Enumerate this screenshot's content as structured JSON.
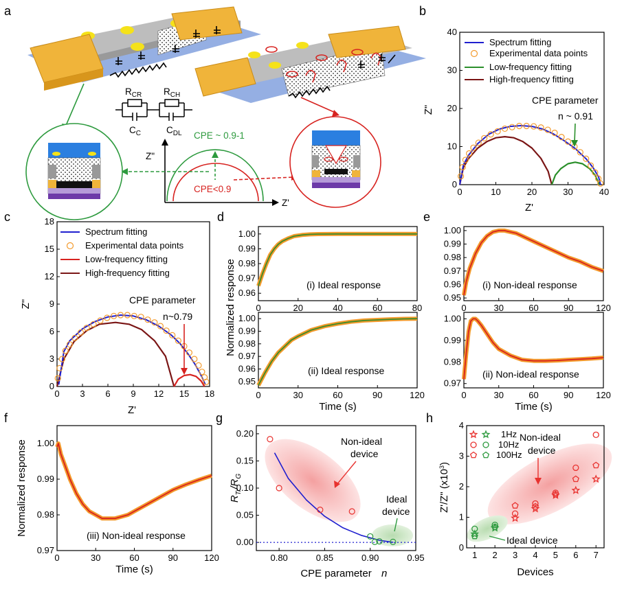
{
  "colors": {
    "fit_blue": "#1f1fcf",
    "exp_orange": "#f39a2c",
    "low_green": "#2a8f2a",
    "high_dark": "#7a1515",
    "red_curve": "#d7221f",
    "green_resp": "#3b8b2a",
    "gold": "#f2b33a",
    "ideal_green": "#2d9a3e",
    "nonideal_red": "#e8322f"
  },
  "panel_labels": {
    "a": "a",
    "b": "b",
    "c": "c",
    "d": "d",
    "e": "e",
    "f": "f",
    "g": "g",
    "h": "h"
  },
  "panel_a": {
    "rcr": "R",
    "rcr_sub": "CR",
    "rch": "R",
    "rch_sub": "CH",
    "cc": "C",
    "cc_sub": "C",
    "cdl": "C",
    "cdl_sub": "DL",
    "zpp": "Z\"",
    "zp": "Z'",
    "cpe_ideal": "CPE ~ 0.9-1",
    "cpe_nonideal": "CPE<0.9"
  },
  "legend": {
    "spectrum": "Spectrum fitting",
    "experimental": "Experimental data points",
    "low": "Low-frequency fitting",
    "high": "High-frequency fitting"
  },
  "chart_data": [
    {
      "panel": "b",
      "type": "scatter",
      "xlabel": "Z'",
      "ylabel": "Z\"",
      "xlim": [
        0,
        40
      ],
      "ylim": [
        0,
        40
      ],
      "xticks": [
        "0",
        "10",
        "20",
        "30",
        "40"
      ],
      "yticks": [
        "0",
        "10",
        "20",
        "30",
        "40"
      ],
      "annotation_title": "CPE parameter",
      "annotation_value": "n ~ 0.91",
      "series": [
        {
          "name": "Spectrum fitting",
          "kind": "line",
          "x": [
            0,
            1,
            2.5,
            5,
            8,
            11,
            14,
            17,
            20,
            23,
            26,
            29,
            32,
            35,
            37,
            38.5,
            39
          ],
          "y": [
            0,
            5.2,
            7.8,
            10.8,
            13.2,
            14.6,
            15.3,
            15.5,
            15.3,
            14.6,
            13.3,
            11.5,
            9.5,
            6.8,
            4.4,
            2,
            0
          ]
        },
        {
          "name": "Experimental data points",
          "kind": "marker",
          "x": [
            0.3,
            0.8,
            1.6,
            2.6,
            3.8,
            5.2,
            6.8,
            8.6,
            10.5,
            12.5,
            14.5,
            16.5,
            18.5,
            20.5,
            22.5,
            24.4,
            26.3,
            28.2,
            30,
            31.8,
            33.4,
            35,
            36.3,
            37.5,
            38.4,
            39
          ],
          "y": [
            2.2,
            4.6,
            6.5,
            8.2,
            9.7,
            11,
            12.2,
            13.2,
            14,
            14.7,
            15.1,
            15.4,
            15.4,
            15.3,
            15,
            14.4,
            13.6,
            12.5,
            11.3,
            10,
            8.5,
            6.8,
            5,
            3.2,
            1.6,
            0.3
          ]
        },
        {
          "name": "High-frequency fitting",
          "kind": "line",
          "x": [
            0,
            1,
            2.5,
            5,
            7.5,
            10,
            12.5,
            15,
            17.5,
            20,
            22.5,
            24.5,
            25.5
          ],
          "y": [
            0,
            4.5,
            6.9,
            9.6,
            11.3,
            12.3,
            12.6,
            12.3,
            11.3,
            9.6,
            6.9,
            3.5,
            0
          ]
        },
        {
          "name": "Low-frequency fitting",
          "kind": "line",
          "x": [
            25.5,
            26.5,
            28,
            30,
            32,
            34,
            36,
            37.5,
            38.7
          ],
          "y": [
            0,
            2.5,
            4.2,
            5.5,
            5.9,
            5.5,
            4.2,
            2.5,
            0
          ]
        }
      ]
    },
    {
      "panel": "c",
      "type": "scatter",
      "xlabel": "Z'",
      "ylabel": "Z\"",
      "xlim": [
        0,
        18
      ],
      "ylim": [
        0,
        18
      ],
      "xticks": [
        "0",
        "3",
        "6",
        "9",
        "12",
        "15",
        "18"
      ],
      "yticks": [
        "0",
        "3",
        "6",
        "9",
        "12",
        "15",
        "18"
      ],
      "annotation_title": "CPE parameter",
      "annotation_value": "n~0.79",
      "series": [
        {
          "name": "Spectrum fitting",
          "kind": "line",
          "x": [
            0.2,
            0.8,
            1.5,
            3,
            4.5,
            6,
            7.5,
            9,
            10.5,
            12,
            13.5,
            14.5,
            15.5,
            16.3,
            17,
            17.5
          ],
          "y": [
            0.2,
            3.8,
            5,
            6.3,
            7.1,
            7.6,
            7.8,
            7.7,
            7.3,
            6.6,
            5.6,
            4.7,
            3.5,
            2.4,
            1.2,
            0.2
          ]
        },
        {
          "name": "Experimental data points",
          "kind": "marker",
          "x": [
            0.1,
            0.3,
            0.6,
            1,
            1.5,
            2.1,
            2.8,
            3.5,
            4.3,
            5.1,
            5.9,
            6.7,
            7.5,
            8.3,
            9.1,
            9.9,
            10.7,
            11.5,
            12.2,
            12.9,
            13.6,
            14.3,
            15,
            15.6,
            16.2,
            16.7,
            17.1,
            17.4,
            17.6
          ],
          "y": [
            0.9,
            2,
            3,
            3.9,
            4.6,
            5.3,
            5.9,
            6.4,
            6.8,
            7.2,
            7.5,
            7.7,
            7.8,
            7.8,
            7.7,
            7.6,
            7.3,
            7,
            6.6,
            6.1,
            5.6,
            5,
            4.4,
            3.7,
            3,
            2.3,
            1.6,
            1,
            0.5
          ]
        },
        {
          "name": "High-frequency fitting",
          "kind": "line",
          "x": [
            0,
            0.8,
            2,
            3.5,
            5,
            6.9,
            8.5,
            10,
            11.5,
            12.8,
            13.8
          ],
          "y": [
            0,
            3,
            4.9,
            6.1,
            6.8,
            7,
            6.8,
            6.2,
            5,
            3.3,
            0
          ]
        },
        {
          "name": "Low-frequency fitting",
          "kind": "line",
          "x": [
            13.8,
            14.3,
            15,
            15.7,
            16.4,
            17,
            17.4
          ],
          "y": [
            0,
            0.8,
            1.2,
            1.3,
            1.1,
            0.6,
            0
          ]
        }
      ]
    },
    {
      "panel": "d-i",
      "type": "line",
      "annotation": "(i) Ideal response",
      "xlim": [
        0,
        80
      ],
      "ylim": [
        0.955,
        1.005
      ],
      "xticks": [
        "0",
        "20",
        "40",
        "60",
        "80"
      ],
      "yticks": [
        "0.96",
        "0.97",
        "0.98",
        "0.99",
        "1.00"
      ],
      "series": [
        {
          "kind": "line",
          "x": [
            0,
            2,
            4,
            6,
            8,
            10,
            12,
            15,
            18,
            22,
            26,
            30,
            40,
            60,
            80
          ],
          "y": [
            0.965,
            0.973,
            0.98,
            0.986,
            0.99,
            0.993,
            0.995,
            0.997,
            0.9985,
            0.9993,
            0.9997,
            0.9999,
            1.0,
            1.0,
            1.0
          ]
        }
      ]
    },
    {
      "panel": "d-ii",
      "type": "line",
      "annotation": "(ii) Ideal response",
      "xlabel": "Time (s)",
      "ylabel": "Normalized response",
      "xlim": [
        0,
        120
      ],
      "ylim": [
        0.945,
        1.005
      ],
      "xticks": [
        "0",
        "30",
        "60",
        "90",
        "120"
      ],
      "yticks": [
        "0.95",
        "0.96",
        "0.97",
        "0.98",
        "0.99",
        "1.00"
      ],
      "series": [
        {
          "kind": "line",
          "x": [
            0,
            5,
            10,
            15,
            20,
            25,
            30,
            40,
            50,
            60,
            70,
            80,
            90,
            100,
            110,
            120
          ],
          "y": [
            0.947,
            0.957,
            0.966,
            0.973,
            0.978,
            0.983,
            0.986,
            0.991,
            0.994,
            0.996,
            0.9975,
            0.9985,
            0.999,
            0.9995,
            0.9998,
            1.0
          ]
        }
      ]
    },
    {
      "panel": "e-i",
      "type": "line",
      "annotation": "(i) Non-ideal response",
      "xlim": [
        0,
        120
      ],
      "ylim": [
        0.948,
        1.003
      ],
      "xticks": [
        "0",
        "30",
        "60",
        "90",
        "120"
      ],
      "yticks": [
        "0.95",
        "0.96",
        "0.97",
        "0.98",
        "0.99",
        "1.00"
      ],
      "series": [
        {
          "kind": "line",
          "x": [
            0,
            2,
            5,
            10,
            15,
            20,
            25,
            30,
            35,
            40,
            45,
            50,
            60,
            70,
            80,
            90,
            100,
            110,
            120
          ],
          "y": [
            0.952,
            0.962,
            0.972,
            0.983,
            0.991,
            0.996,
            0.999,
            1.0,
            1.0,
            0.999,
            0.998,
            0.996,
            0.992,
            0.988,
            0.984,
            0.98,
            0.977,
            0.973,
            0.97
          ]
        }
      ]
    },
    {
      "panel": "e-ii",
      "type": "line",
      "annotation": "(ii) Non-ideal response",
      "xlabel": "Time (s)",
      "xlim": [
        0,
        120
      ],
      "ylim": [
        0.968,
        1.003
      ],
      "xticks": [
        "0",
        "30",
        "60",
        "90",
        "120"
      ],
      "yticks": [
        "0.97",
        "0.98",
        "0.99",
        "1.00"
      ],
      "series": [
        {
          "kind": "line",
          "x": [
            0,
            2,
            4,
            6,
            8,
            10,
            12,
            15,
            20,
            25,
            30,
            40,
            50,
            60,
            70,
            80,
            90,
            100,
            110,
            120
          ],
          "y": [
            0.972,
            0.984,
            0.994,
            0.999,
            1.0,
            1.0,
            0.999,
            0.997,
            0.993,
            0.989,
            0.986,
            0.983,
            0.981,
            0.9805,
            0.9805,
            0.9807,
            0.981,
            0.9813,
            0.9816,
            0.982
          ]
        }
      ]
    },
    {
      "panel": "f",
      "type": "line",
      "annotation": "(iii) Non-ideal response",
      "xlabel": "Time (s)",
      "ylabel": "Normalized response",
      "xlim": [
        0,
        120
      ],
      "ylim": [
        0.97,
        1.005
      ],
      "xticks": [
        "0",
        "30",
        "60",
        "90",
        "120"
      ],
      "yticks": [
        "0.97",
        "0.98",
        "0.99",
        "1.00"
      ],
      "series": [
        {
          "kind": "line",
          "x": [
            0,
            1,
            3,
            6,
            10,
            15,
            20,
            25,
            30,
            35,
            40,
            45,
            50,
            55,
            60,
            70,
            80,
            90,
            100,
            110,
            120
          ],
          "y": [
            0.999,
            1.0,
            0.997,
            0.994,
            0.99,
            0.986,
            0.983,
            0.981,
            0.98,
            0.979,
            0.979,
            0.979,
            0.9795,
            0.98,
            0.981,
            0.983,
            0.985,
            0.987,
            0.9885,
            0.9898,
            0.991
          ]
        }
      ]
    },
    {
      "panel": "g",
      "type": "scatter",
      "xlabel": "CPE parameter n",
      "ylabel": "R_Tr/R_G",
      "xlim": [
        0.775,
        0.95
      ],
      "ylim": [
        -0.015,
        0.215
      ],
      "xticks": [
        "0.80",
        "0.85",
        "0.90",
        "0.95"
      ],
      "yticks": [
        "0.00",
        "0.05",
        "0.10",
        "0.15",
        "0.20"
      ],
      "annotations": {
        "nonideal": "Non-ideal\ndevice",
        "ideal": "Ideal\ndevice"
      },
      "series": [
        {
          "name": "non-ideal",
          "kind": "marker",
          "x": [
            0.79,
            0.8,
            0.845,
            0.88
          ],
          "y": [
            0.19,
            0.1,
            0.06,
            0.057
          ]
        },
        {
          "name": "ideal",
          "kind": "marker",
          "x": [
            0.9,
            0.905,
            0.91,
            0.925
          ],
          "y": [
            0.011,
            0.001,
            0.002,
            0.001
          ]
        },
        {
          "name": "fit",
          "kind": "line",
          "x": [
            0.795,
            0.81,
            0.83,
            0.85,
            0.87,
            0.89,
            0.91,
            0.925
          ],
          "y": [
            0.165,
            0.118,
            0.078,
            0.048,
            0.027,
            0.013,
            0.004,
            0.0
          ]
        }
      ]
    },
    {
      "panel": "h",
      "type": "scatter",
      "xlabel": "Devices",
      "ylabel": "Z'/Z\" (x10^3)",
      "xlim": [
        0.6,
        7.4
      ],
      "ylim": [
        0,
        4
      ],
      "xticks": [
        "1",
        "2",
        "3",
        "4",
        "5",
        "6",
        "7"
      ],
      "yticks": [
        "0",
        "1",
        "2",
        "3",
        "4"
      ],
      "legend": [
        "1Hz",
        "10Hz",
        "100Hz"
      ],
      "annotations": {
        "nonideal": "Non-ideal\ndevice",
        "ideal": "Ideal device"
      },
      "series": [
        {
          "name": "1Hz",
          "kind": "star",
          "x": [
            1,
            2,
            3,
            4,
            5,
            6,
            7
          ],
          "y": [
            0.45,
            0.65,
            0.97,
            1.28,
            1.72,
            1.88,
            2.25
          ]
        },
        {
          "name": "10Hz",
          "kind": "circle",
          "x": [
            1,
            2,
            3,
            4,
            5,
            6,
            7
          ],
          "y": [
            0.62,
            0.75,
            1.12,
            1.45,
            1.8,
            2.62,
            3.7
          ]
        },
        {
          "name": "100Hz",
          "kind": "pentagon",
          "x": [
            1,
            2,
            3,
            4,
            5,
            6,
            7
          ],
          "y": [
            0.38,
            0.68,
            1.38,
            1.35,
            1.75,
            2.25,
            2.7
          ]
        }
      ]
    }
  ]
}
